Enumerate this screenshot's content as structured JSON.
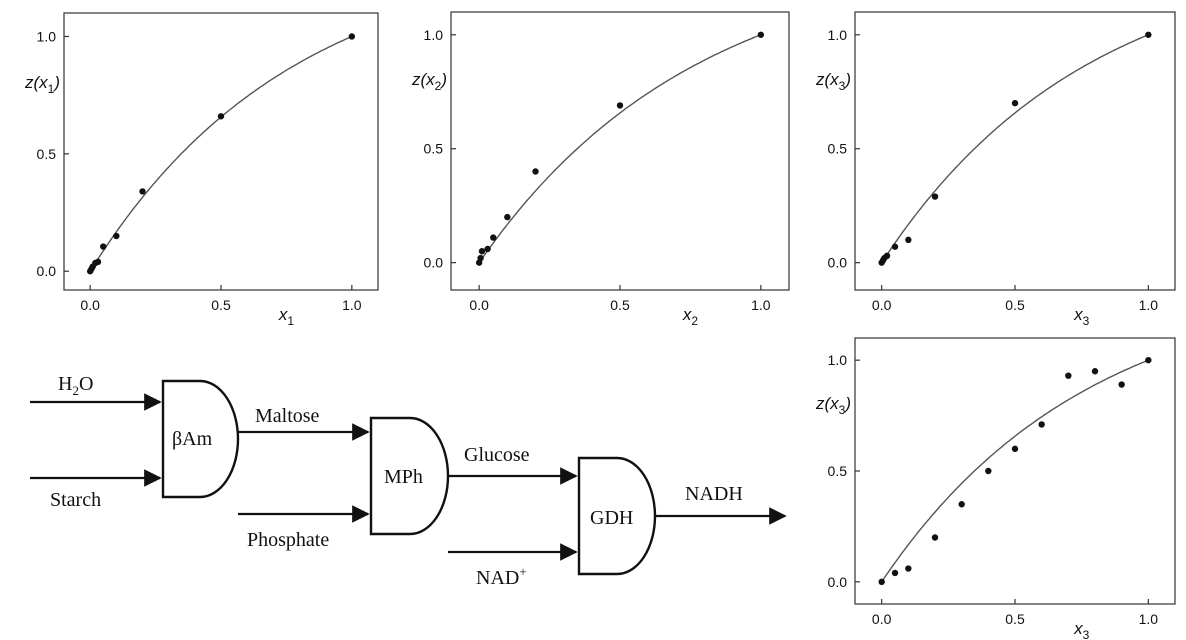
{
  "chart_data": [
    {
      "type": "scatter",
      "xlabel": {
        "var": "x",
        "sub": "1"
      },
      "ylabel": {
        "var": "z(x",
        "sub": "1",
        "close": ")"
      },
      "xlim": [
        -0.1,
        1.1
      ],
      "ylim": [
        -0.08,
        1.1
      ],
      "xticks": [
        "0.0",
        "0.5",
        "1.0"
      ],
      "yticks": [
        "0.0",
        "0.5",
        "1.0"
      ],
      "points": [
        [
          0.0,
          0.0
        ],
        [
          0.005,
          0.01
        ],
        [
          0.01,
          0.02
        ],
        [
          0.02,
          0.035
        ],
        [
          0.03,
          0.04
        ],
        [
          0.05,
          0.105
        ],
        [
          0.1,
          0.15
        ],
        [
          0.2,
          0.34
        ],
        [
          0.5,
          0.66
        ],
        [
          1.0,
          1.0
        ]
      ],
      "fit": {
        "model": "1 - exp(-k x)",
        "k": 1.3
      }
    },
    {
      "type": "scatter",
      "xlabel": {
        "var": "x",
        "sub": "2"
      },
      "ylabel": {
        "var": "z(x",
        "sub": "2",
        "close": ")"
      },
      "xlim": [
        -0.1,
        1.1
      ],
      "ylim": [
        -0.12,
        1.1
      ],
      "xticks": [
        "0.0",
        "0.5",
        "1.0"
      ],
      "yticks": [
        "0.0",
        "0.5",
        "1.0"
      ],
      "points": [
        [
          0.0,
          0.0
        ],
        [
          0.005,
          0.02
        ],
        [
          0.01,
          0.05
        ],
        [
          0.03,
          0.06
        ],
        [
          0.05,
          0.11
        ],
        [
          0.1,
          0.2
        ],
        [
          0.2,
          0.4
        ],
        [
          0.5,
          0.69
        ],
        [
          1.0,
          1.0
        ]
      ],
      "fit": {
        "model": "1 - exp(-k x)",
        "k": 1.3
      }
    },
    {
      "type": "scatter",
      "xlabel": {
        "var": "x",
        "sub": "3"
      },
      "ylabel": {
        "var": "z(x",
        "sub": "3",
        "close": ")"
      },
      "xlim": [
        -0.1,
        1.1
      ],
      "ylim": [
        -0.12,
        1.1
      ],
      "xticks": [
        "0.0",
        "0.5",
        "1.0"
      ],
      "yticks": [
        "0.0",
        "0.5",
        "1.0"
      ],
      "points": [
        [
          0.0,
          0.0
        ],
        [
          0.005,
          0.01
        ],
        [
          0.01,
          0.02
        ],
        [
          0.02,
          0.03
        ],
        [
          0.05,
          0.07
        ],
        [
          0.1,
          0.1
        ],
        [
          0.2,
          0.29
        ],
        [
          0.5,
          0.7
        ],
        [
          1.0,
          1.0
        ]
      ],
      "fit": {
        "model": "1 - exp(-k x)",
        "k": 1.3
      }
    },
    {
      "type": "scatter",
      "xlabel": {
        "var": "x",
        "sub": "3"
      },
      "ylabel": {
        "var": "z(x",
        "sub": "3",
        "close": ")"
      },
      "xlim": [
        -0.1,
        1.1
      ],
      "ylim": [
        -0.1,
        1.1
      ],
      "xticks": [
        "0.0",
        "0.5",
        "1.0"
      ],
      "yticks": [
        "0.0",
        "0.5",
        "1.0"
      ],
      "points": [
        [
          0.0,
          0.0
        ],
        [
          0.05,
          0.04
        ],
        [
          0.1,
          0.06
        ],
        [
          0.2,
          0.2
        ],
        [
          0.3,
          0.35
        ],
        [
          0.4,
          0.5
        ],
        [
          0.5,
          0.6
        ],
        [
          0.6,
          0.71
        ],
        [
          0.7,
          0.93
        ],
        [
          0.8,
          0.95
        ],
        [
          0.9,
          0.89
        ],
        [
          1.0,
          1.0
        ]
      ],
      "fit": {
        "model": "1 - exp(-k x)",
        "k": 1.3
      }
    }
  ],
  "diagram": {
    "inputs": {
      "h2o": "H2O",
      "starch": "Starch",
      "phosphate": "Phosphate",
      "nad": "NAD+"
    },
    "enzymes": {
      "bam": "βAm",
      "mph": "MPh",
      "gdh": "GDH"
    },
    "intermediates": {
      "maltose": "Maltose",
      "glucose": "Glucose"
    },
    "output": {
      "nadh": "NADH"
    },
    "sub_text": {
      "h2o_main": "H",
      "h2o_sub": "2",
      "h2o_tail": "O",
      "nad_main": "NAD",
      "nad_sup": "+"
    }
  }
}
